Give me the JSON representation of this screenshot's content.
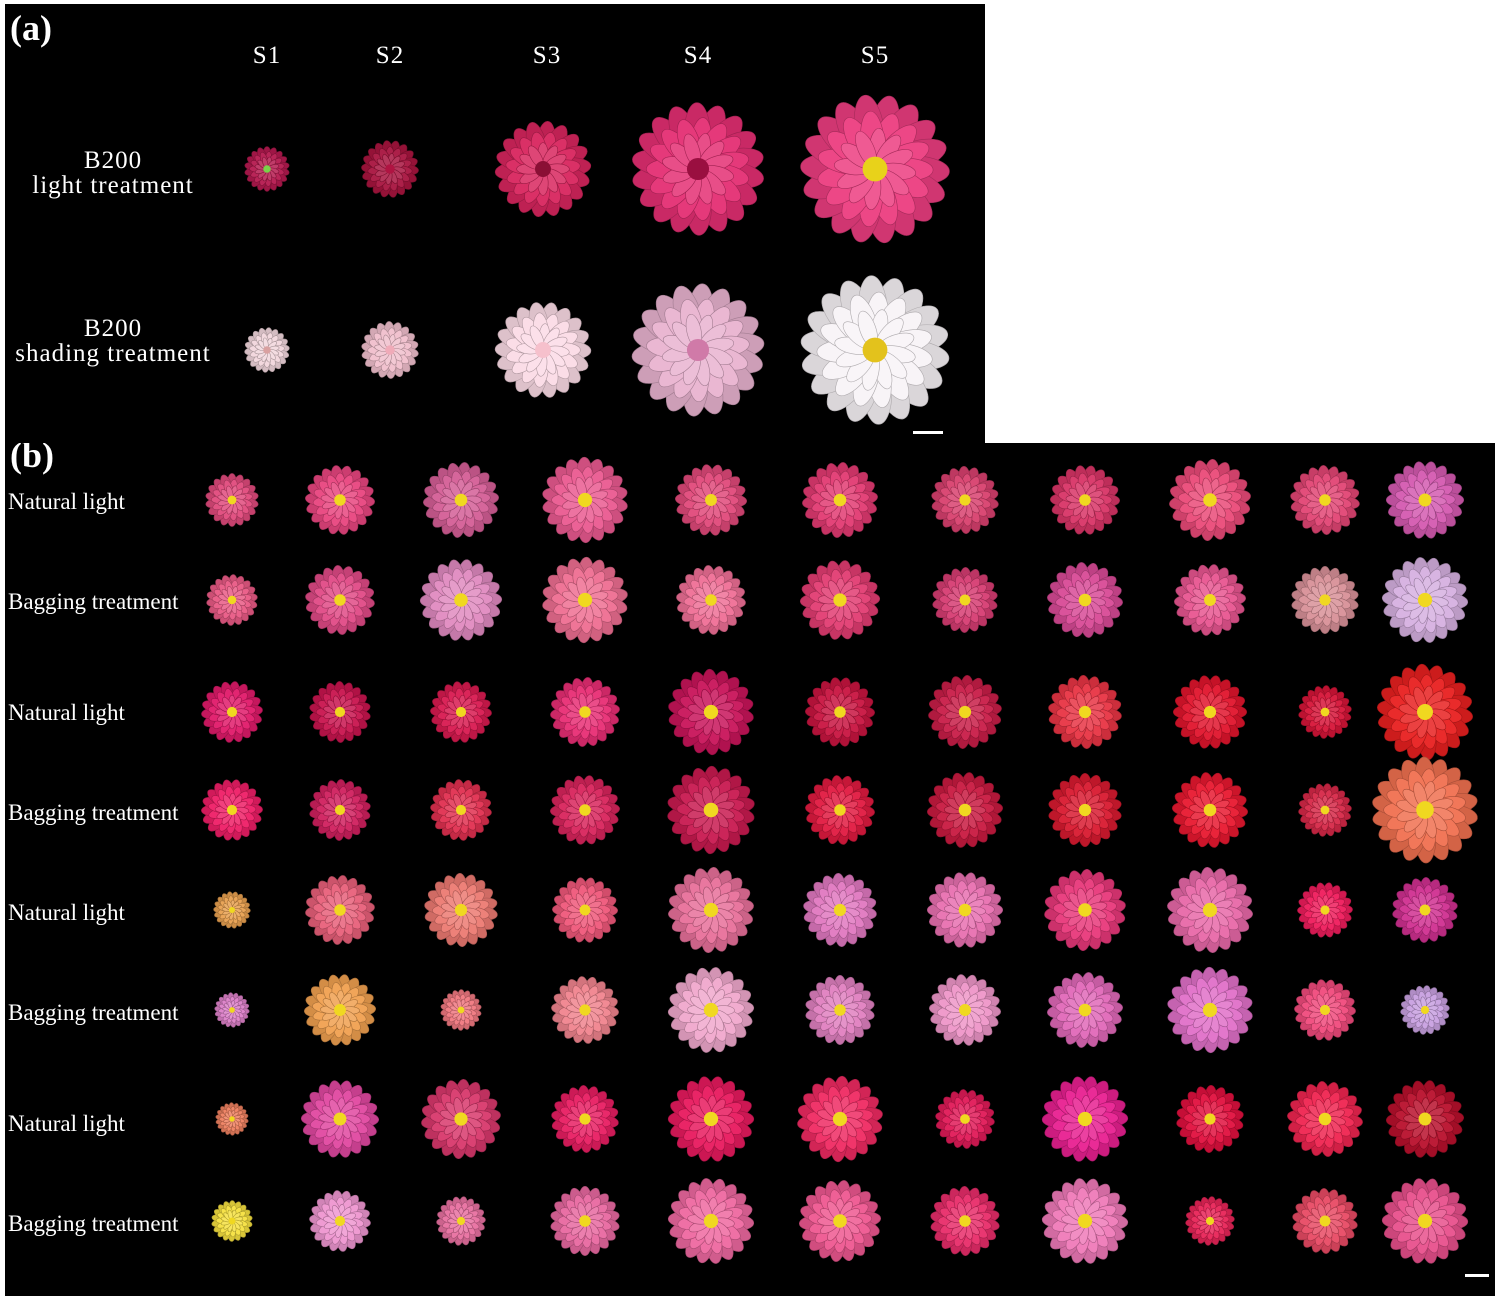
{
  "panel_a": {
    "label": "(a)",
    "stages": [
      "S1",
      "S2",
      "S3",
      "S4",
      "S5"
    ],
    "rows": [
      {
        "line1": "B200",
        "line2": "light treatment"
      },
      {
        "line1": "B200",
        "line2": "shading treatment"
      }
    ],
    "colors": {
      "light_row": [
        "#b5194f",
        "#a8143f",
        "#d8255e",
        "#e42f73",
        "#ec3d80"
      ],
      "shading_row": [
        "#f1d6dc",
        "#f0bfcc",
        "#fbdbe6",
        "#e9b3d0",
        "#f8f3f7"
      ],
      "light_center": [
        "#7ad14a",
        "#b01442",
        "#8a0f35",
        "#9a0f40",
        "#e8d21a"
      ],
      "shading_center": [
        "#d9a0a0",
        "#f0aab8",
        "#f6c0cc",
        "#d07aa8",
        "#e3c21c"
      ]
    }
  },
  "panel_b": {
    "label": "(b)",
    "row_labels": [
      "Natural light",
      "Bagging treatment",
      "Natural light",
      "Bagging treatment",
      "Natural light",
      "Bagging treatment",
      "Natural light",
      "Bagging treatment"
    ],
    "row_colors": [
      [
        "#e04a7c",
        "#e8457f",
        "#d45e96",
        "#ea5a90",
        "#e0497a",
        "#e23a72",
        "#d8406e",
        "#d83466",
        "#ea4a78",
        "#e24574",
        "#d45ab0"
      ],
      [
        "#e95a85",
        "#e04a86",
        "#e08ac0",
        "#ee6e92",
        "#ef6f96",
        "#e23c72",
        "#d63c72",
        "#d84a96",
        "#e85590",
        "#d89098",
        "#d6b0e0"
      ],
      [
        "#e01a6a",
        "#c8144e",
        "#d81a50",
        "#e82d74",
        "#c8145a",
        "#c81440",
        "#c81d48",
        "#e83444",
        "#e0142c",
        "#d61438",
        "#e82020"
      ],
      [
        "#ee1e66",
        "#d0205e",
        "#e03050",
        "#d8245c",
        "#c81a50",
        "#e01a40",
        "#c81a40",
        "#d81a30",
        "#e81830",
        "#d62848",
        "#f07050"
      ],
      [
        "#e8a050",
        "#e8607a",
        "#ec7a72",
        "#ef587a",
        "#e8709a",
        "#e078c0",
        "#e870b0",
        "#e8387a",
        "#e868a8",
        "#ef1c5c",
        "#d03090"
      ],
      [
        "#dc80c8",
        "#f0a050",
        "#f07880",
        "#f0848e",
        "#f0a8cc",
        "#e080c0",
        "#ee96c8",
        "#e068b8",
        "#e070c8",
        "#f04a7c",
        "#c8a0e0"
      ],
      [
        "#ee8060",
        "#e048a0",
        "#d8386c",
        "#e81e62",
        "#e81a5e",
        "#ef2a62",
        "#e01a58",
        "#e82090",
        "#e0103e",
        "#ef2450",
        "#b8102c"
      ],
      [
        "#f5e040",
        "#ee96d0",
        "#e870a0",
        "#e868a0",
        "#ee68a0",
        "#ee5890",
        "#e82c6a",
        "#ef7ab8",
        "#e82458",
        "#e84a64",
        "#e8508c"
      ]
    ],
    "center_color": "#f0d820"
  }
}
